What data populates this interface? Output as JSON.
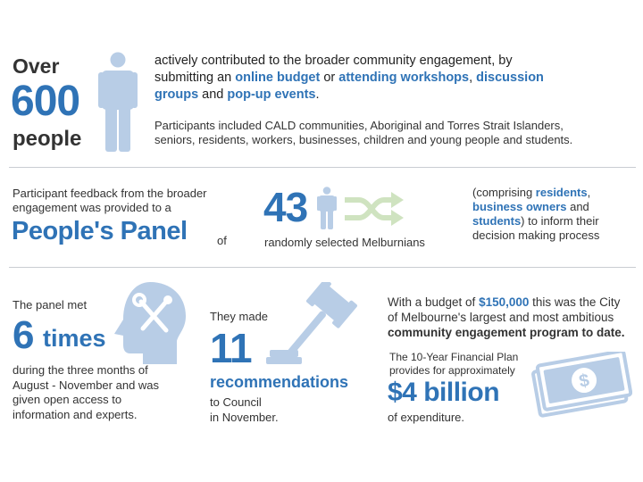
{
  "colors": {
    "blue": "#2f73b6",
    "light_blue": "#b8cde6",
    "green": "#cfe3c0",
    "text": "#222222",
    "divider": "#c9cdd2"
  },
  "section1": {
    "over": "Over",
    "number": "600",
    "people": "people",
    "icon": "person-icon",
    "line1": "actively contributed to the broader community engagement, by",
    "line2_pre": "submitting an ",
    "online_budget": "online budget",
    "line2_mid": " or ",
    "attending": "attending workshops",
    "line2_post": ", ",
    "discussion": "discussion",
    "groups": "groups",
    "line3_mid": " and ",
    "popup": "pop-up events",
    "line3_post": ".",
    "participants_1": "Participants included CALD communities, Aboriginal and Torres Strait Islanders,",
    "participants_2": "seniors, residents, workers, businesses, children and young people and students."
  },
  "section2": {
    "feedback_1": "Participant feedback from the broader",
    "feedback_2": "engagement was provided to a",
    "panel": "People's Panel",
    "of": "of",
    "number": "43",
    "randomly": "randomly selected Melburnians",
    "icons": [
      "person-icon",
      "shuffle-icon"
    ],
    "comp_1_pre": "(comprising ",
    "residents": "residents",
    "comp_1_post": ",",
    "business_owners": "business owners",
    "comp_2_post": " and",
    "students": "students",
    "comp_3_post": ") to inform their",
    "comp_4": "decision making process"
  },
  "section3": {
    "met": "The panel met",
    "six": "6",
    "times": "times",
    "during_1": "during the three months of",
    "during_2": "August - November and was",
    "during_3": "given open access to",
    "during_4": "information and experts.",
    "head_icon": "head-tools-icon",
    "made": "They made",
    "eleven": "11",
    "recommendations": "recommendations",
    "to_council": "to Council",
    "in_november": "in November.",
    "gavel_icon": "gavel-icon",
    "budget_pre": "With a budget of ",
    "budget_amount": "$150,000",
    "budget_post": " this was the City",
    "budget_2": "of Melbourne's largest and most ambitious",
    "budget_3": "community engagement program to date.",
    "plan_1": "The 10-Year Financial Plan",
    "plan_2": "provides for approximately",
    "billion": "$4 billion",
    "expenditure": "of expenditure.",
    "money_icon": "money-icon"
  }
}
